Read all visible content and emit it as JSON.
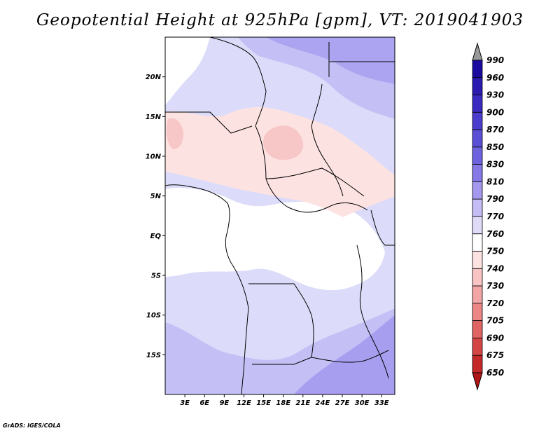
{
  "title": "Geopotential Height at 925hPa [gpm], VT: 2019041903",
  "footer": "GrADS: IGES/COLA",
  "map": {
    "lon_range": [
      0,
      35
    ],
    "lat_range": [
      -20,
      25
    ],
    "lat_ticks": [
      {
        "value": 20,
        "label": "20N"
      },
      {
        "value": 15,
        "label": "15N"
      },
      {
        "value": 10,
        "label": "10N"
      },
      {
        "value": 5,
        "label": "5N"
      },
      {
        "value": 0,
        "label": "EQ"
      },
      {
        "value": -5,
        "label": "5S"
      },
      {
        "value": -10,
        "label": "10S"
      },
      {
        "value": -15,
        "label": "15S"
      }
    ],
    "lon_ticks": [
      {
        "value": 3,
        "label": "3E"
      },
      {
        "value": 6,
        "label": "6E"
      },
      {
        "value": 9,
        "label": "9E"
      },
      {
        "value": 12,
        "label": "12E"
      },
      {
        "value": 15,
        "label": "15E"
      },
      {
        "value": 18,
        "label": "18E"
      },
      {
        "value": 21,
        "label": "21E"
      },
      {
        "value": 24,
        "label": "24E"
      },
      {
        "value": 27,
        "label": "27E"
      },
      {
        "value": 30,
        "label": "30E"
      },
      {
        "value": 33,
        "label": "33E"
      }
    ]
  },
  "colorbar": {
    "levels": [
      "990",
      "960",
      "930",
      "900",
      "870",
      "850",
      "830",
      "810",
      "790",
      "770",
      "760",
      "750",
      "740",
      "730",
      "720",
      "705",
      "690",
      "675",
      "650"
    ],
    "colors": [
      "#1a0aa0",
      "#2a1ab0",
      "#3a2ac0",
      "#4a3ccc",
      "#5a4ed6",
      "#6e62de",
      "#8678e6",
      "#a498ee",
      "#c4bcf4",
      "#e0dcf8",
      "#ffffff",
      "#fde2e2",
      "#f9c4c4",
      "#f3a6a6",
      "#eb8686",
      "#e06464",
      "#d44646",
      "#c42828",
      "#b01414"
    ],
    "top_arrow_color": "#999999",
    "bottom_arrow_color": "#b01414"
  }
}
